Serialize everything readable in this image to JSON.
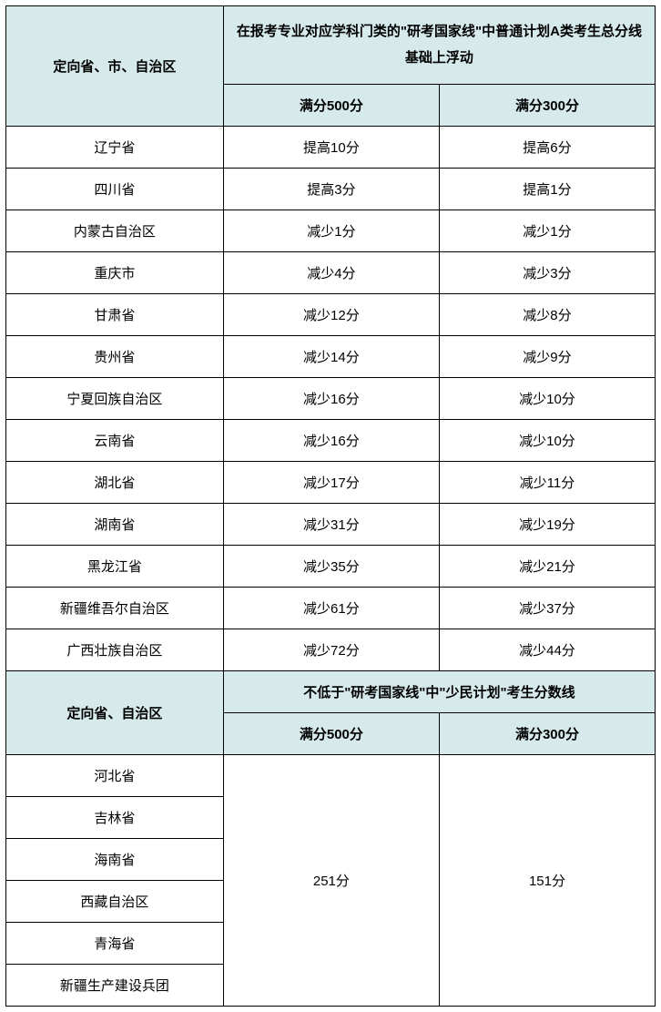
{
  "colors": {
    "header_bg": "#d6e9eb",
    "border": "#000000",
    "text": "#000000",
    "background": "#ffffff"
  },
  "typography": {
    "fontsize_pt": 15,
    "header_weight": "bold",
    "body_weight": "normal"
  },
  "section1": {
    "row_header": "定向省、市、自治区",
    "group_header": "在报考专业对应学科门类的\"研考国家线\"中普通计划A类考生总分线基础上浮动",
    "col500": "满分500分",
    "col300": "满分300分",
    "rows": [
      {
        "label": "辽宁省",
        "v500": "提高10分",
        "v300": "提高6分"
      },
      {
        "label": "四川省",
        "v500": "提高3分",
        "v300": "提高1分"
      },
      {
        "label": "内蒙古自治区",
        "v500": "减少1分",
        "v300": "减少1分"
      },
      {
        "label": "重庆市",
        "v500": "减少4分",
        "v300": "减少3分"
      },
      {
        "label": "甘肃省",
        "v500": "减少12分",
        "v300": "减少8分"
      },
      {
        "label": "贵州省",
        "v500": "减少14分",
        "v300": "减少9分"
      },
      {
        "label": "宁夏回族自治区",
        "v500": "减少16分",
        "v300": "减少10分"
      },
      {
        "label": "云南省",
        "v500": "减少16分",
        "v300": "减少10分"
      },
      {
        "label": "湖北省",
        "v500": "减少17分",
        "v300": "减少11分"
      },
      {
        "label": "湖南省",
        "v500": "减少31分",
        "v300": "减少19分"
      },
      {
        "label": "黑龙江省",
        "v500": "减少35分",
        "v300": "减少21分"
      },
      {
        "label": "新疆维吾尔自治区",
        "v500": "减少61分",
        "v300": "减少37分"
      },
      {
        "label": "广西壮族自治区",
        "v500": "减少72分",
        "v300": "减少44分"
      }
    ]
  },
  "section2": {
    "row_header": "定向省、自治区",
    "group_header": "不低于\"研考国家线\"中\"少民计划\"考生分数线",
    "col500": "满分500分",
    "col300": "满分300分",
    "labels": [
      "河北省",
      "吉林省",
      "海南省",
      "西藏自治区",
      "青海省",
      "新疆生产建设兵团"
    ],
    "v500": "251分",
    "v300": "151分"
  }
}
